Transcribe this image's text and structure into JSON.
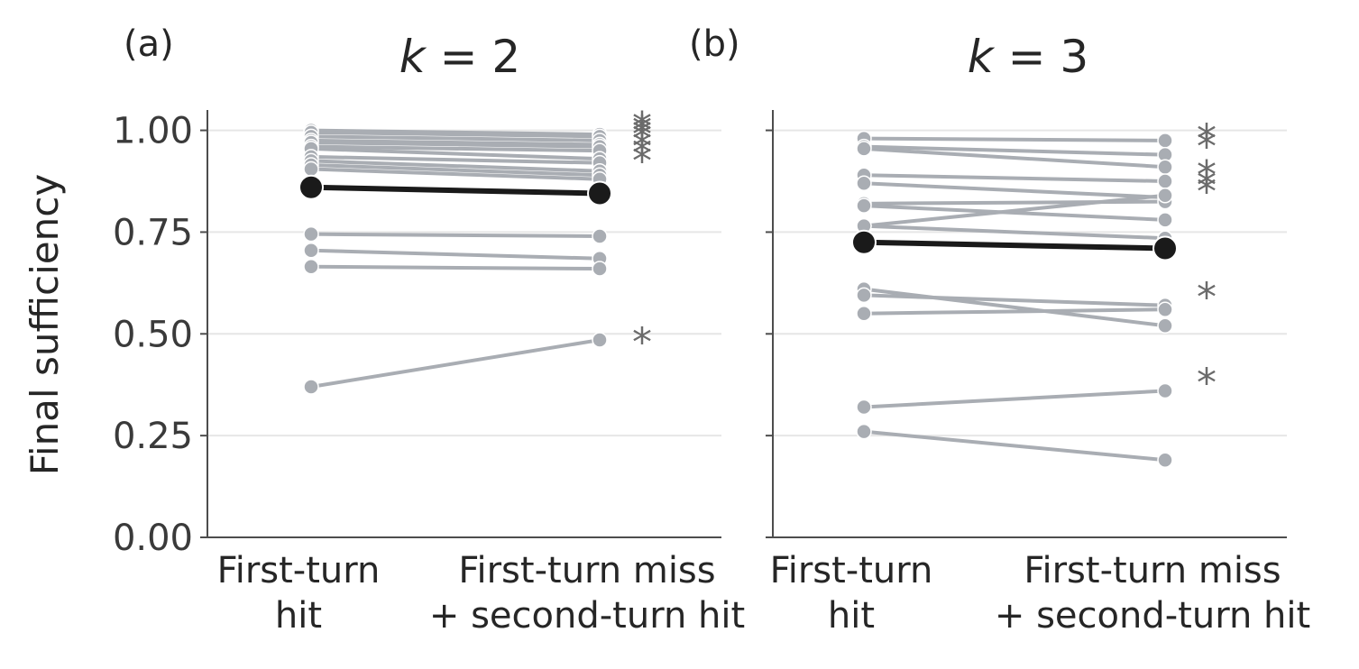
{
  "chart_data": [
    {
      "type": "line",
      "panel_label": "(a)",
      "title_var": "k",
      "title_value": "2",
      "ylabel": "Final sufficiency",
      "categories": [
        [
          "First-turn",
          "hit"
        ],
        [
          "First-turn miss",
          "+ second-turn hit"
        ]
      ],
      "ylim": [
        0,
        1.05
      ],
      "yticks": [
        "0.00",
        "0.25",
        "0.50",
        "0.75",
        "1.00"
      ],
      "grid": true,
      "colors": {
        "pair": "#a9adb3",
        "mean": "#1a1a1a",
        "star": "#6b6b6b"
      },
      "pairs": [
        [
          1.0,
          0.99
        ],
        [
          0.995,
          0.985
        ],
        [
          0.985,
          0.975
        ],
        [
          0.975,
          0.965
        ],
        [
          0.97,
          0.96
        ],
        [
          0.96,
          0.95
        ],
        [
          0.955,
          0.93
        ],
        [
          0.935,
          0.92
        ],
        [
          0.925,
          0.9
        ],
        [
          0.915,
          0.89
        ],
        [
          0.905,
          0.88
        ],
        [
          0.745,
          0.74
        ],
        [
          0.705,
          0.685
        ],
        [
          0.665,
          0.66
        ],
        [
          0.37,
          0.485
        ]
      ],
      "mean": [
        0.86,
        0.845
      ],
      "stars": [
        1.03,
        1.02,
        1.01,
        1.0,
        0.98,
        0.965,
        0.945,
        0.5
      ]
    },
    {
      "type": "line",
      "panel_label": "(b)",
      "title_var": "k",
      "title_value": "3",
      "ylabel": "",
      "categories": [
        [
          "First-turn",
          "hit"
        ],
        [
          "First-turn miss",
          "+ second-turn hit"
        ]
      ],
      "ylim": [
        0,
        1.05
      ],
      "yticks": [
        "0.00",
        "0.25",
        "0.50",
        "0.75",
        "1.00"
      ],
      "grid": true,
      "colors": {
        "pair": "#a9adb3",
        "mean": "#1a1a1a",
        "star": "#6b6b6b"
      },
      "pairs": [
        [
          0.98,
          0.975
        ],
        [
          0.96,
          0.94
        ],
        [
          0.955,
          0.91
        ],
        [
          0.89,
          0.875
        ],
        [
          0.87,
          0.835
        ],
        [
          0.82,
          0.825
        ],
        [
          0.815,
          0.78
        ],
        [
          0.765,
          0.84
        ],
        [
          0.765,
          0.735
        ],
        [
          0.61,
          0.52
        ],
        [
          0.595,
          0.57
        ],
        [
          0.55,
          0.56
        ],
        [
          0.32,
          0.36
        ],
        [
          0.26,
          0.19
        ]
      ],
      "mean": [
        0.725,
        0.71
      ],
      "stars": [
        1.0,
        0.98,
        0.91,
        0.885,
        0.87,
        0.61,
        0.4
      ]
    }
  ]
}
